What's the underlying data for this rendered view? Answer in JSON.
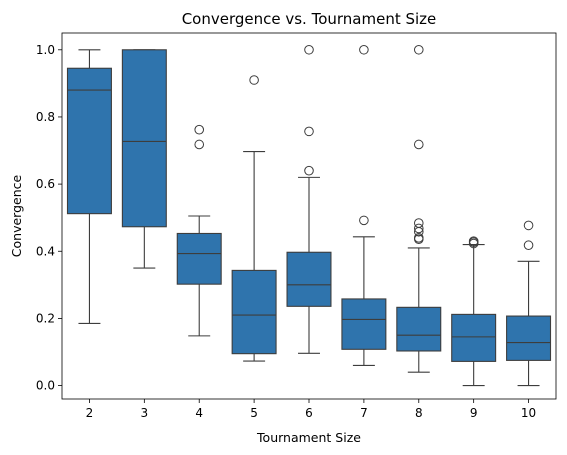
{
  "chart_data": {
    "type": "box",
    "title": "Convergence vs. Tournament Size",
    "xlabel": "Tournament Size",
    "ylabel": "Convergence",
    "ylim": [
      -0.04,
      1.05
    ],
    "yticks": [
      0.0,
      0.2,
      0.4,
      0.6,
      0.8,
      1.0
    ],
    "ytick_labels": [
      "0.0",
      "0.2",
      "0.4",
      "0.6",
      "0.8",
      "1.0"
    ],
    "categories": [
      "2",
      "3",
      "4",
      "5",
      "6",
      "7",
      "8",
      "9",
      "10"
    ],
    "grid": false,
    "box_color": "#2f74ad",
    "line_color": "#3d3d3d",
    "boxes": [
      {
        "category": "2",
        "whisker_low": 0.185,
        "q1": 0.512,
        "median": 0.88,
        "q3": 0.945,
        "whisker_high": 1.0,
        "outliers": []
      },
      {
        "category": "3",
        "whisker_low": 0.35,
        "q1": 0.473,
        "median": 0.727,
        "q3": 1.0,
        "whisker_high": 1.0,
        "outliers": []
      },
      {
        "category": "4",
        "whisker_low": 0.148,
        "q1": 0.302,
        "median": 0.393,
        "q3": 0.453,
        "whisker_high": 0.505,
        "outliers": [
          0.762,
          0.718
        ]
      },
      {
        "category": "5",
        "whisker_low": 0.073,
        "q1": 0.095,
        "median": 0.21,
        "q3": 0.343,
        "whisker_high": 0.697,
        "outliers": [
          0.91
        ]
      },
      {
        "category": "6",
        "whisker_low": 0.096,
        "q1": 0.236,
        "median": 0.3,
        "q3": 0.397,
        "whisker_high": 0.62,
        "outliers": [
          1.0,
          0.757,
          0.64
        ]
      },
      {
        "category": "7",
        "whisker_low": 0.06,
        "q1": 0.108,
        "median": 0.197,
        "q3": 0.258,
        "whisker_high": 0.443,
        "outliers": [
          1.0,
          0.492
        ]
      },
      {
        "category": "8",
        "whisker_low": 0.04,
        "q1": 0.103,
        "median": 0.15,
        "q3": 0.233,
        "whisker_high": 0.41,
        "outliers": [
          1.0,
          0.718,
          0.484,
          0.468,
          0.458,
          0.44,
          0.436
        ]
      },
      {
        "category": "9",
        "whisker_low": 0.0,
        "q1": 0.072,
        "median": 0.145,
        "q3": 0.212,
        "whisker_high": 0.42,
        "outliers": [
          0.43,
          0.427,
          0.423
        ]
      },
      {
        "category": "10",
        "whisker_low": 0.0,
        "q1": 0.075,
        "median": 0.128,
        "q3": 0.207,
        "whisker_high": 0.37,
        "outliers": [
          0.477,
          0.418
        ]
      }
    ]
  }
}
